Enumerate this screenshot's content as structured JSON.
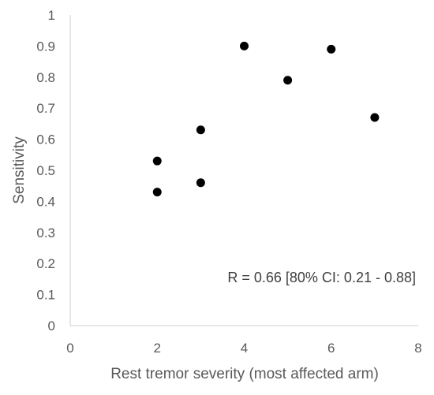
{
  "chart_data": {
    "type": "scatter",
    "title": "",
    "xlabel": "Rest tremor severity (most affected arm)",
    "ylabel": "Sensitivity",
    "xlim": [
      0,
      8
    ],
    "ylim": [
      0,
      1
    ],
    "x_ticks": [
      0,
      2,
      4,
      6,
      8
    ],
    "y_ticks": [
      0,
      0.1,
      0.2,
      0.3,
      0.4,
      0.5,
      0.6,
      0.7,
      0.8,
      0.9,
      1
    ],
    "x_tick_labels": [
      "0",
      "2",
      "4",
      "6",
      "8"
    ],
    "y_tick_labels": [
      "0",
      "0.1",
      "0.2",
      "0.3",
      "0.4",
      "0.5",
      "0.6",
      "0.7",
      "0.8",
      "0.9",
      "1"
    ],
    "grid": false,
    "legend": "none",
    "marker_color": "#000000",
    "axis_color": "#d9d9d9",
    "points": [
      {
        "x": 2,
        "y": 0.53
      },
      {
        "x": 2,
        "y": 0.43
      },
      {
        "x": 3,
        "y": 0.63
      },
      {
        "x": 3,
        "y": 0.46
      },
      {
        "x": 4,
        "y": 0.9
      },
      {
        "x": 5,
        "y": 0.79
      },
      {
        "x": 6,
        "y": 0.89
      },
      {
        "x": 7,
        "y": 0.67
      }
    ],
    "annotation": "R = 0.66 [80% CI: 0.21 - 0.88]"
  }
}
